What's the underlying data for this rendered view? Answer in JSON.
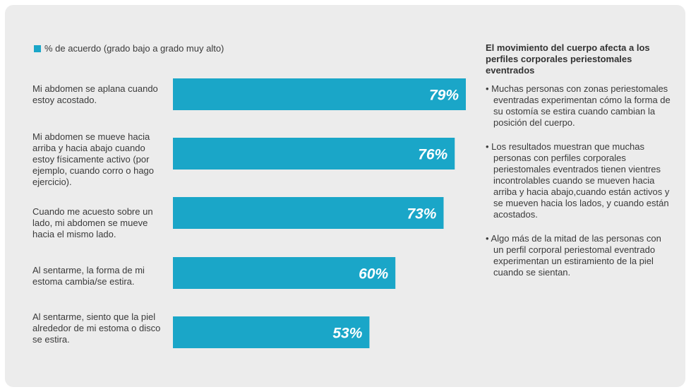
{
  "legend": {
    "label": "% de acuerdo (grado bajo a grado muy alto)",
    "color": "#1aa6c8"
  },
  "chart_data": {
    "type": "bar",
    "orientation": "horizontal",
    "categories": [
      "Mi abdomen se aplana cuando estoy acostado.",
      "Mi abdomen se mueve hacia arriba y hacia abajo cuando estoy físicamente activo (por ejemplo, cuando corro o hago ejercicio).",
      "Cuando me acuesto sobre un lado, mi abdomen se mueve hacia el mismo lado.",
      "Al sentarme, la forma de mi estoma cambia/se estira.",
      "Al sentarme, siento que la piel alrededor de mi estoma o disco se estira."
    ],
    "values": [
      79,
      76,
      73,
      60,
      53
    ],
    "value_labels": [
      "79%",
      "76%",
      "73%",
      "60%",
      "53%"
    ],
    "xlim": [
      0,
      79
    ],
    "bar_color": "#1aa6c8",
    "grid": false,
    "legend_position": "top-left"
  },
  "side_panel": {
    "title": "El movimiento del cuerpo afecta a los perfiles corporales periestomales eventrados",
    "bullets": [
      "• Muchas personas con zonas periestomales eventradas experimentan cómo la forma de su ostomía se estira cuando cambian la posición del cuerpo.",
      "• Los resultados muestran que muchas personas con perfiles corporales periestomales eventrados tienen vientres incontrolables cuando se mueven hacia arriba y hacia abajo,cuando están activos y se mueven hacia los lados, y cuando están acostados.",
      "• Algo más de la mitad de las personas con un perfil corporal periestomal eventrado experimentan un estiramiento de la piel cuando se sientan."
    ]
  }
}
